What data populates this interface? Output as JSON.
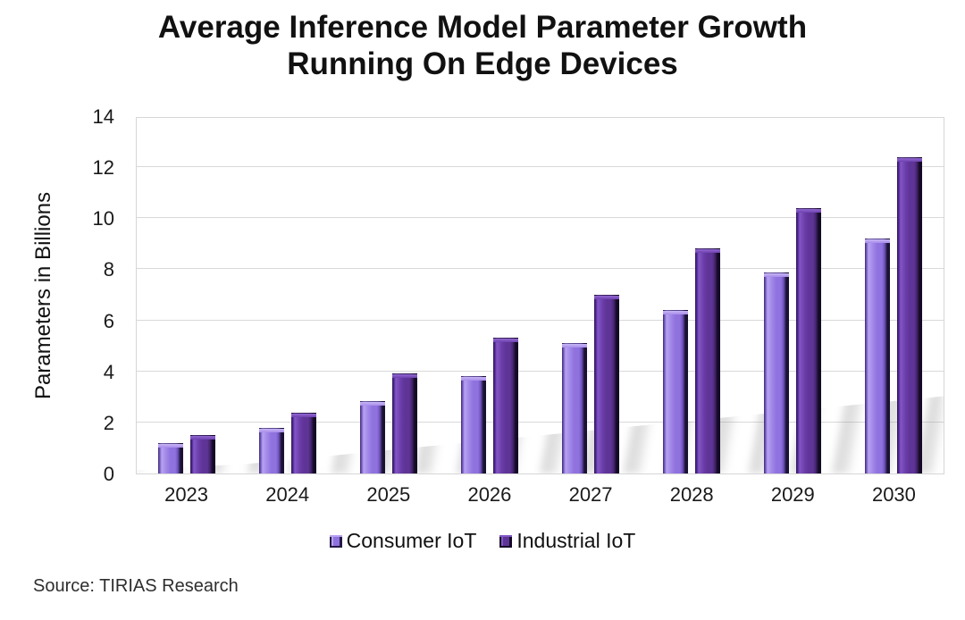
{
  "title": "Average Inference Model Parameter Growth\nRunning On Edge Devices",
  "y_axis_title": "Parameters in Billions",
  "source": "Source: TIRIAS Research",
  "colors": {
    "consumer_iot": "#8F72DE",
    "consumer_iot_highlight": "#B7A2F0",
    "industrial_iot": "#5F3497",
    "industrial_iot_highlight": "#8257C4",
    "gridline": "#D9D9D9",
    "text": "#111111"
  },
  "legend": {
    "items": [
      {
        "label": "Consumer IoT",
        "color": "#8F72DE"
      },
      {
        "label": "Industrial IoT",
        "color": "#5F3497"
      }
    ]
  },
  "chart_data": {
    "type": "bar",
    "title": "Average Inference Model Parameter Growth Running On Edge Devices",
    "categories": [
      "2023",
      "2024",
      "2025",
      "2026",
      "2027",
      "2028",
      "2029",
      "2030"
    ],
    "series": [
      {
        "name": "Consumer IoT",
        "color": "#8F72DE",
        "values": [
          1.2,
          1.8,
          2.85,
          3.85,
          5.15,
          6.45,
          7.9,
          9.25
        ]
      },
      {
        "name": "Industrial IoT",
        "color": "#5F3497",
        "values": [
          1.5,
          2.4,
          3.95,
          5.35,
          7.05,
          8.85,
          10.45,
          12.45
        ]
      }
    ],
    "xlabel": "",
    "ylabel": "Parameters in Billions",
    "ylim": [
      0,
      14
    ],
    "ytick_step": 2,
    "grid": true,
    "legend_position": "bottom",
    "source": "Source: TIRIAS Research"
  }
}
